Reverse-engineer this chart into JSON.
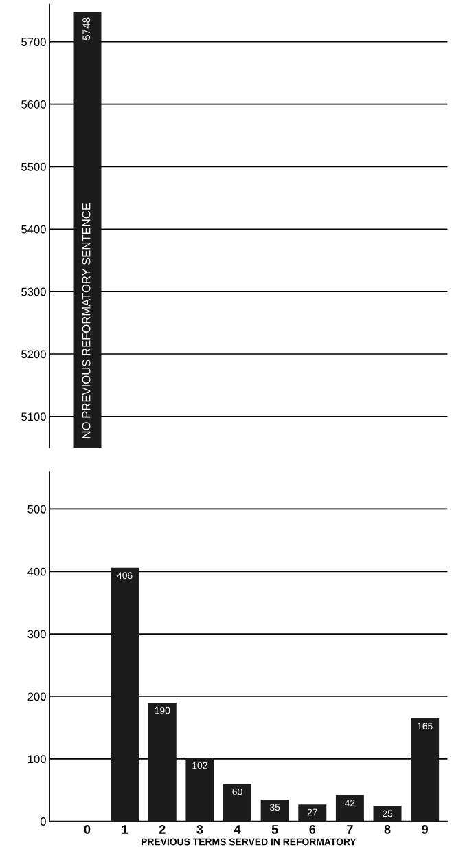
{
  "chart_data": [
    {
      "type": "bar",
      "categories": [
        "0",
        "1",
        "2",
        "3",
        "4",
        "5",
        "6",
        "7",
        "8",
        "9"
      ],
      "values": [
        5748,
        null,
        null,
        null,
        null,
        null,
        null,
        null,
        null,
        null
      ],
      "color": "#1c1c1c",
      "ylim": [
        5050,
        5760
      ],
      "yticks": [
        5100,
        5200,
        5300,
        5400,
        5500,
        5600,
        5700
      ],
      "grid": "y",
      "data_labels": true,
      "tick_labels": "y",
      "annotations": [
        "NO PREVIOUS REFORMATORY SENTENCE"
      ]
    },
    {
      "type": "bar",
      "categories": [
        "0",
        "1",
        "2",
        "3",
        "4",
        "5",
        "6",
        "7",
        "8",
        "9"
      ],
      "values": [
        null,
        406,
        190,
        102,
        60,
        35,
        27,
        42,
        25,
        165
      ],
      "color": "#1c1c1c",
      "ylim": [
        0,
        560
      ],
      "yticks": [
        0,
        100,
        200,
        300,
        400,
        500
      ],
      "grid": "y",
      "data_labels": true,
      "xlabel": "PREVIOUS TERMS SERVED IN REFORMATORY"
    }
  ]
}
